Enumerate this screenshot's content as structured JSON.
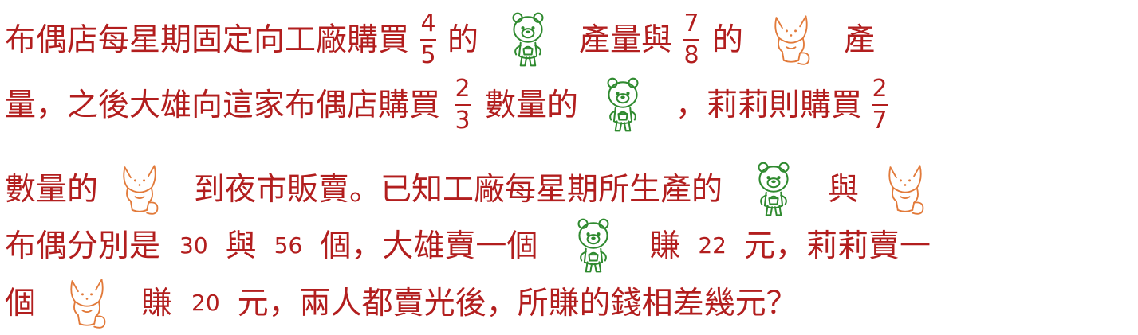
{
  "problem": {
    "line1": {
      "t1": "布偶店每星期固定向工廠購買",
      "f1": {
        "num": "4",
        "den": "5"
      },
      "t2": "的",
      "t3": "產量與",
      "f2": {
        "num": "7",
        "den": "8"
      },
      "t4": "的",
      "t5": "產"
    },
    "line2": {
      "t1": "量，之後大雄向這家布偶店購買",
      "f1": {
        "num": "2",
        "den": "3"
      },
      "t2": "數量的",
      "t3": "，莉莉則購買",
      "f2": {
        "num": "2",
        "den": "7"
      }
    },
    "line3": {
      "t1": "數量的",
      "t2": "到夜市販賣。已知工廠每星期所生產的",
      "t3": "與"
    },
    "line4": {
      "t1": "布偶分別是",
      "n1": "30",
      "t2": "與",
      "n2": "56",
      "t3": "個，大雄賣一個",
      "t4": "賺",
      "n3": "22",
      "t5": "元，莉莉賣一"
    },
    "line5": {
      "t1": "個",
      "t2": "賺",
      "n1": "20",
      "t3": "元，兩人都賣光後，所賺的錢相差幾元？"
    }
  },
  "icons": {
    "bear": "bear-doll-icon",
    "fox": "fox-doll-icon"
  },
  "colors": {
    "text": "#b21e1e",
    "bear": "#2f8a2f",
    "fox": "#e27a3a"
  }
}
